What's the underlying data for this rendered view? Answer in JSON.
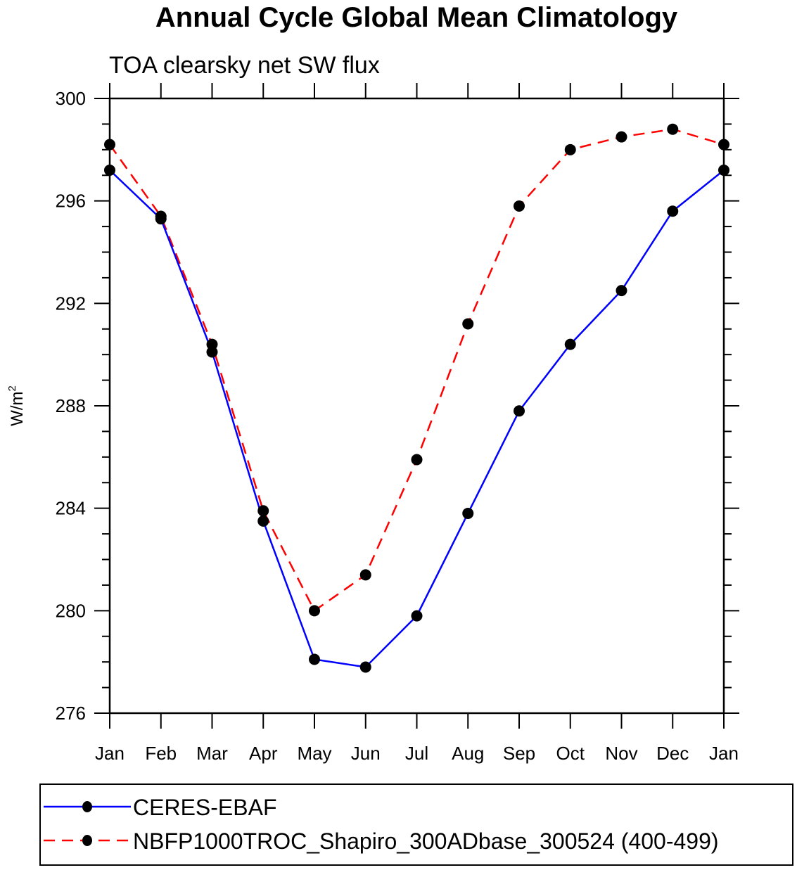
{
  "chart_data": {
    "type": "line",
    "title": "Annual Cycle Global Mean Climatology",
    "subtitle": "TOA clearsky net SW flux",
    "xlabel": "",
    "ylabel": "W/m",
    "ylabel_sup": "2",
    "categories": [
      "Jan",
      "Feb",
      "Mar",
      "Apr",
      "May",
      "Jun",
      "Jul",
      "Aug",
      "Sep",
      "Oct",
      "Nov",
      "Dec",
      "Jan"
    ],
    "ylim": [
      276,
      300
    ],
    "yticks": [
      276,
      280,
      284,
      288,
      292,
      296,
      300
    ],
    "y_minor_step": 1,
    "grid": false,
    "legend_position": "bottom",
    "series": [
      {
        "name": "CERES-EBAF",
        "color": "#0000ff",
        "dash": "solid",
        "marker": "filled-circle",
        "values": [
          297.2,
          295.3,
          290.1,
          283.5,
          278.1,
          277.8,
          279.8,
          283.8,
          287.8,
          290.4,
          292.5,
          295.6,
          297.2
        ]
      },
      {
        "name": "NBFP1000TROC_Shapiro_300ADbase_300524 (400-499)",
        "color": "#ff0000",
        "dash": "dashed",
        "marker": "filled-circle",
        "values": [
          298.2,
          295.4,
          290.4,
          283.9,
          280.0,
          281.4,
          285.9,
          291.2,
          295.8,
          298.0,
          298.5,
          298.8,
          298.2
        ]
      }
    ]
  }
}
